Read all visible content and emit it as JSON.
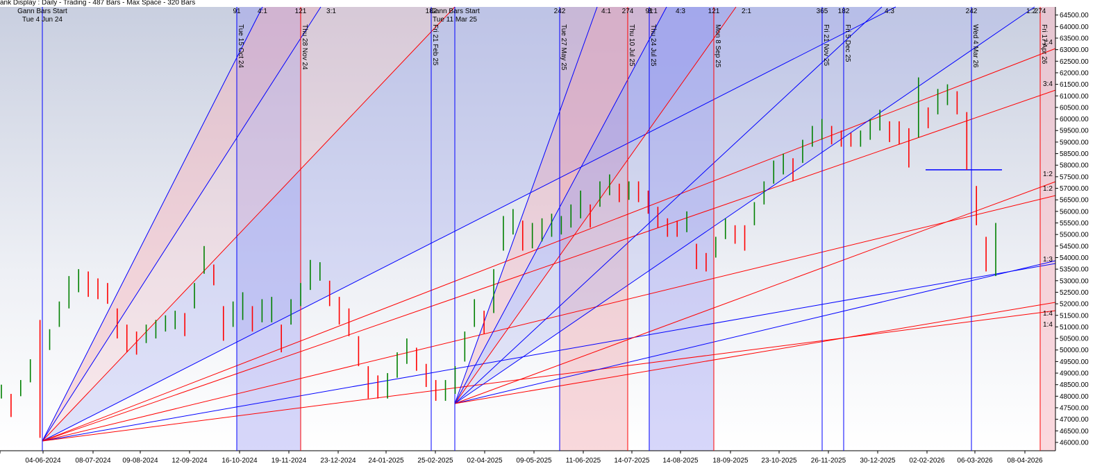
{
  "header": "ank Display : Daily - Trading - 487 Bars - Max Space - 320 Bars",
  "chart_data": {
    "type": "ohlc",
    "ylim": [
      45700,
      64850
    ],
    "yticks": [
      {
        "value": 46000,
        "label": "46000.00"
      },
      {
        "value": 46500,
        "label": "46500.00"
      },
      {
        "value": 47000,
        "label": "47000.00"
      },
      {
        "value": 47500,
        "label": "47500.00"
      },
      {
        "value": 48000,
        "label": "48000.00"
      },
      {
        "value": 48500,
        "label": "48500.00"
      },
      {
        "value": 49000,
        "label": "49000.00"
      },
      {
        "value": 49500,
        "label": "49500.00"
      },
      {
        "value": 50000,
        "label": "50000.00"
      },
      {
        "value": 50500,
        "label": "50500.00"
      },
      {
        "value": 51000,
        "label": "51000.00"
      },
      {
        "value": 51500,
        "label": "51500.00"
      },
      {
        "value": 52000,
        "label": "52000.00"
      },
      {
        "value": 52500,
        "label": "52500.00"
      },
      {
        "value": 53000,
        "label": "53000.00"
      },
      {
        "value": 53500,
        "label": "53500.00"
      },
      {
        "value": 54000,
        "label": "54000.00"
      },
      {
        "value": 54500,
        "label": "54500.00"
      },
      {
        "value": 55000,
        "label": "55000.00"
      },
      {
        "value": 55500,
        "label": "55500.00"
      },
      {
        "value": 56000,
        "label": "56000.00"
      },
      {
        "value": 56500,
        "label": "56500.00"
      },
      {
        "value": 57000,
        "label": "57000.00"
      },
      {
        "value": 57500,
        "label": "57500.00"
      },
      {
        "value": 58000,
        "label": "58000.00"
      },
      {
        "value": 58500,
        "label": "58500.00"
      },
      {
        "value": 59000,
        "label": "59000.00"
      },
      {
        "value": 59500,
        "label": "59500.00"
      },
      {
        "value": 60000,
        "label": "60000.00"
      },
      {
        "value": 60500,
        "label": "60500.00"
      },
      {
        "value": 61000,
        "label": "61000.00"
      },
      {
        "value": 61500,
        "label": "61500.00"
      },
      {
        "value": 62000,
        "label": "62000.00"
      },
      {
        "value": 62500,
        "label": "62500.00"
      },
      {
        "value": 63000,
        "label": "63000.00"
      },
      {
        "value": 63500,
        "label": "63500.00"
      },
      {
        "value": 64000,
        "label": "64000.00"
      },
      {
        "value": 64500,
        "label": "64500.00"
      }
    ],
    "x_labels": [
      "024",
      "04-06-2024",
      "08-07-2024",
      "09-08-2024",
      "12-09-2024",
      "16-10-2024",
      "19-11-2024",
      "23-12-2024",
      "24-01-2025",
      "25-02-2025",
      "02-04-2025",
      "09-05-2025",
      "11-06-2025",
      "14-07-2025",
      "14-08-2025",
      "18-09-2025",
      "23-10-2025",
      "26-11-2025",
      "30-12-2025",
      "02-02-2026",
      "06-03-2026",
      "08-04-2026"
    ],
    "starts": [
      {
        "label": "Gann Bars Start",
        "date": "Tue 4 Jun 24"
      },
      {
        "label": "Gann Bars Start",
        "date": "Tue 11 Mar 25"
      }
    ],
    "cycles": [
      {
        "date": "Tue 15 Oct 24",
        "count": 91,
        "color": "#0000ff"
      },
      {
        "date": "Thu 28 Nov 24",
        "count": 121,
        "color": "#ff0000"
      },
      {
        "date": "Fri 21 Feb 25",
        "count": 182,
        "color": "#0000ff"
      },
      {
        "date": "Tue 27 May 25",
        "count": 242,
        "color": "#0000ff"
      },
      {
        "date": "Thu 10 Jul 25",
        "count": 274,
        "color": "#ff0000"
      },
      {
        "date": "Thu 24 Jul 25",
        "count": 91,
        "color": "#0000ff"
      },
      {
        "date": "Mon 8 Sep 25",
        "count": 121,
        "color": "#ff0000"
      },
      {
        "date": "Fri 21 Nov 25",
        "count": 365,
        "color": "#0000ff"
      },
      {
        "date": "Fri 5 Dec 25",
        "count": 182,
        "color": "#0000ff"
      },
      {
        "date": "Wed 4 Mar 26",
        "count": 242,
        "color": "#0000ff"
      },
      {
        "date": "Fri 17 Apr 26",
        "count": 274,
        "color": "#ff0000"
      }
    ],
    "angle_labels_top": [
      "4:1",
      "3:1",
      "4:1",
      "3:1",
      "4:3",
      "2:1",
      "4:3",
      "1:2"
    ],
    "angle_labels_right": [
      "1:4",
      "3:4",
      "1:2",
      "1:2",
      "1:3",
      "1:4",
      "1:4"
    ],
    "support": 57800,
    "up_color": "#008000",
    "down_color": "#ff0000",
    "bars": {
      "low": [
        47900,
        47100,
        48000,
        48600,
        46200,
        50000,
        51000,
        51800,
        52500,
        52300,
        52200,
        52000,
        50500,
        49900,
        49800,
        50300,
        50500,
        50800,
        50900,
        50600,
        51800,
        53300,
        52800,
        50400,
        51000,
        51300,
        50800,
        51200,
        51200,
        49900,
        51100,
        51900,
        52600,
        53000,
        51900,
        51100,
        50600,
        49300,
        47900,
        47900,
        47900,
        48800,
        49400,
        49100,
        48400,
        47800,
        47800,
        48100,
        49500,
        51000,
        50700,
        51600,
        54300,
        55000,
        54300,
        54400,
        54700,
        54900,
        55000,
        55300,
        55700,
        55300,
        56200,
        56700,
        56400,
        56500,
        56400,
        55900,
        55300,
        54900,
        54900,
        55100,
        53500,
        53400,
        54000,
        54800,
        54600,
        54300,
        55400,
        56300,
        57200,
        57600,
        57300,
        58100,
        58800,
        59100,
        58900,
        58800,
        58800,
        58800,
        59100,
        59500,
        59000,
        58900,
        57900,
        59200,
        59600,
        60200,
        60600,
        60200,
        57800,
        55400,
        53400,
        53200
      ],
      "high": [
        48500,
        48100,
        48700,
        49600,
        51300,
        50900,
        52100,
        53200,
        53500,
        53400,
        53100,
        52900,
        51800,
        51100,
        50800,
        51100,
        51300,
        51500,
        51700,
        51600,
        52900,
        54500,
        53700,
        51900,
        52100,
        52500,
        51900,
        52200,
        52300,
        51100,
        52200,
        52900,
        53900,
        53800,
        53000,
        52300,
        51800,
        50600,
        49300,
        48900,
        49000,
        49900,
        50500,
        50100,
        49400,
        48700,
        48700,
        49300,
        50800,
        52200,
        51700,
        53500,
        55800,
        56100,
        55600,
        55500,
        55700,
        55900,
        55800,
        56300,
        56900,
        56300,
        57300,
        57600,
        57200,
        57300,
        57300,
        56900,
        56200,
        55700,
        55600,
        56000,
        54600,
        54200,
        54900,
        55700,
        55400,
        55400,
        56400,
        57300,
        58200,
        58500,
        58300,
        59100,
        59700,
        60000,
        59700,
        59500,
        59400,
        59500,
        60000,
        60400,
        59900,
        59900,
        59600,
        61800,
        60500,
        61300,
        61500,
        61200,
        60300,
        57100,
        54900,
        55500
      ]
    }
  }
}
